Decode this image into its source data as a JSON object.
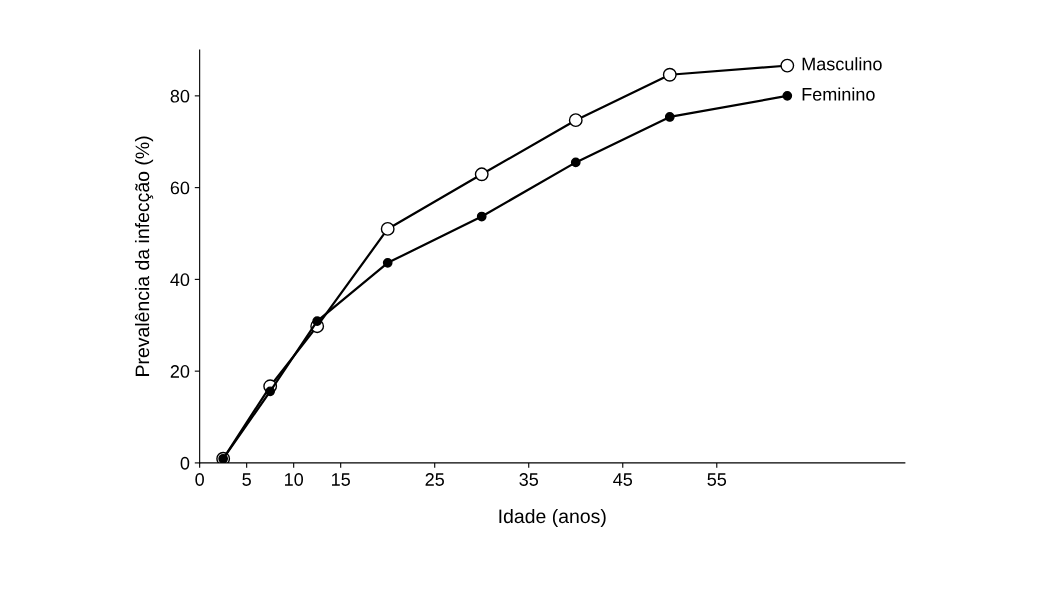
{
  "chart_data": {
    "type": "line",
    "xlabel": "Idade (anos)",
    "ylabel": "Prevalência da infecção (%)",
    "x": [
      2.5,
      7.5,
      12.5,
      20,
      30,
      40,
      50,
      62.5
    ],
    "series": [
      {
        "name": "Masculino",
        "color": "#000000",
        "marker": "circle_open",
        "values": [
          0.9,
          16.7,
          29.8,
          51,
          62.9,
          74.7,
          84.6,
          86.6
        ]
      },
      {
        "name": "Feminino",
        "color": "#000000",
        "marker": "circle",
        "values": [
          0.9,
          15.6,
          30.9,
          43.6,
          53.7,
          65.5,
          75.4,
          80
        ]
      }
    ],
    "xlim": [
      0,
      75
    ],
    "xticks": [
      0,
      5,
      10,
      15,
      25,
      35,
      45,
      55
    ],
    "ylim": [
      0,
      90
    ],
    "yticks": [
      0,
      20,
      40,
      60,
      80
    ],
    "grid": false,
    "legend": false,
    "line_style": "solid"
  }
}
